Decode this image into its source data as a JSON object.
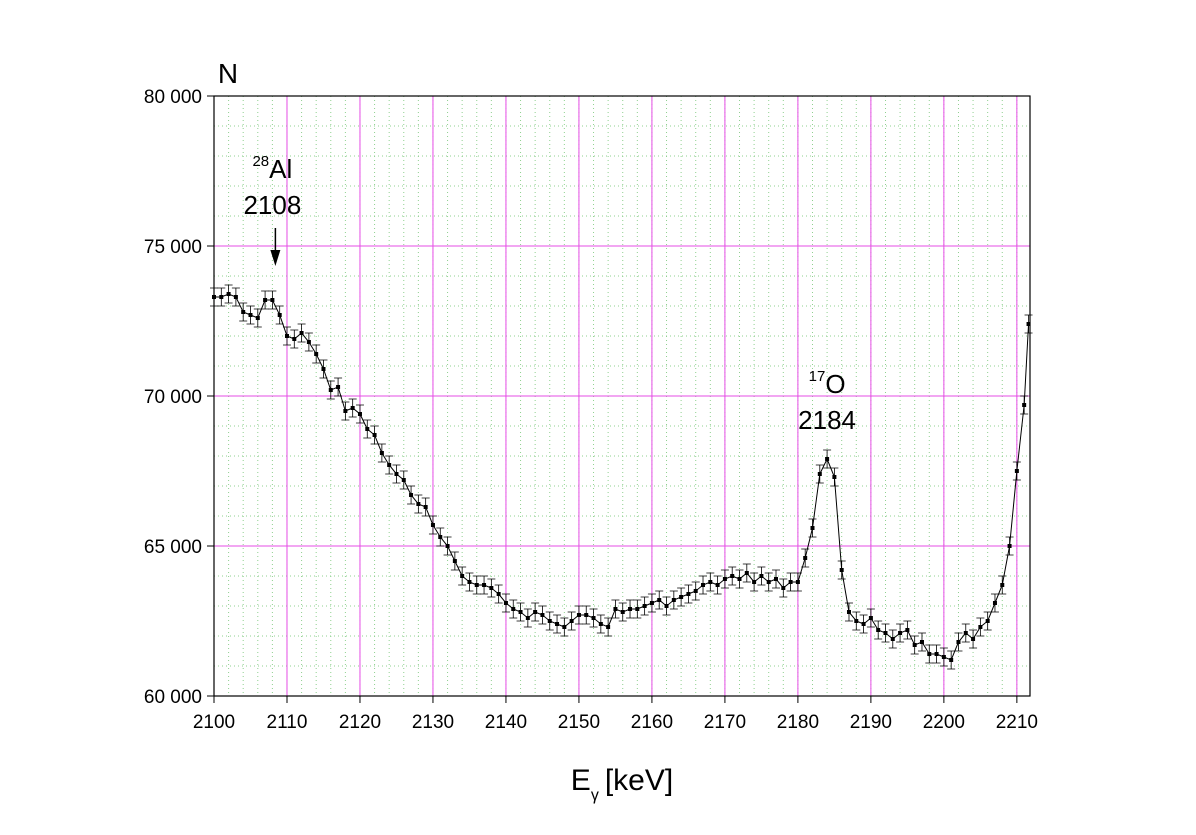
{
  "chart_data": {
    "type": "scatter",
    "y_label": "N",
    "x_label": {
      "main": "E",
      "sub": "γ",
      "unit": "[keV]"
    },
    "xlim": [
      2100,
      2211.8
    ],
    "ylim": [
      60000,
      80000
    ],
    "xticks": [
      2100,
      2110,
      2120,
      2130,
      2140,
      2150,
      2160,
      2170,
      2180,
      2190,
      2200,
      2210
    ],
    "yticks": [
      {
        "value": 60000,
        "label": "60 000"
      },
      {
        "value": 65000,
        "label": "65 000"
      },
      {
        "value": 70000,
        "label": "70 000"
      },
      {
        "value": 75000,
        "label": "75 000"
      },
      {
        "value": 80000,
        "label": "80 000"
      }
    ],
    "grid": true,
    "grid_color": "#e64ce6",
    "minor_grid": true,
    "minor_grid_color": "#8fd08f",
    "color": "#000000",
    "error": 300,
    "x": [
      2100,
      2101,
      2102,
      2103,
      2104,
      2105,
      2106,
      2107,
      2108,
      2109,
      2110,
      2111,
      2112,
      2113,
      2114,
      2115,
      2116,
      2117,
      2118,
      2119,
      2120,
      2121,
      2122,
      2123,
      2124,
      2125,
      2126,
      2127,
      2128,
      2129,
      2130,
      2131,
      2132,
      2133,
      2134,
      2135,
      2136,
      2137,
      2138,
      2139,
      2140,
      2141,
      2142,
      2143,
      2144,
      2145,
      2146,
      2147,
      2148,
      2149,
      2150,
      2151,
      2152,
      2153,
      2154,
      2155,
      2156,
      2157,
      2158,
      2159,
      2160,
      2161,
      2162,
      2163,
      2164,
      2165,
      2166,
      2167,
      2168,
      2169,
      2170,
      2171,
      2172,
      2173,
      2174,
      2175,
      2176,
      2177,
      2178,
      2179,
      2180,
      2181,
      2182,
      2183,
      2184,
      2185,
      2186,
      2187,
      2188,
      2189,
      2190,
      2191,
      2192,
      2193,
      2194,
      2195,
      2196,
      2197,
      2198,
      2199,
      2200,
      2201,
      2202,
      2203,
      2204,
      2205,
      2206,
      2207,
      2208,
      2209,
      2210,
      2211,
      2211.6
    ],
    "values": [
      73300,
      73300,
      73400,
      73300,
      72800,
      72700,
      72600,
      73200,
      73200,
      72700,
      72000,
      71900,
      72100,
      71800,
      71400,
      70900,
      70200,
      70300,
      69500,
      69600,
      69400,
      68900,
      68700,
      68100,
      67700,
      67400,
      67200,
      66700,
      66400,
      66300,
      65700,
      65300,
      65000,
      64500,
      64000,
      63800,
      63700,
      63700,
      63600,
      63400,
      63100,
      62900,
      62800,
      62600,
      62800,
      62700,
      62500,
      62400,
      62300,
      62500,
      62700,
      62700,
      62600,
      62400,
      62300,
      62900,
      62800,
      62900,
      62900,
      63000,
      63100,
      63200,
      63000,
      63200,
      63300,
      63400,
      63500,
      63700,
      63800,
      63700,
      63900,
      64000,
      63900,
      64100,
      63800,
      64000,
      63800,
      63900,
      63600,
      63800,
      63800,
      64600,
      65600,
      67400,
      67900,
      67300,
      64200,
      62800,
      62500,
      62400,
      62600,
      62200,
      62100,
      61900,
      62100,
      62200,
      61700,
      61800,
      61400,
      61400,
      61300,
      61200,
      61800,
      62100,
      61900,
      62300,
      62500,
      63100,
      63700,
      65000,
      67500,
      69700,
      72400
    ],
    "annotations": [
      {
        "mass": "28",
        "element": "Al",
        "energy": 2108,
        "arrow": true
      },
      {
        "mass": "17",
        "element": "O",
        "energy": 2184,
        "arrow": false
      }
    ]
  }
}
